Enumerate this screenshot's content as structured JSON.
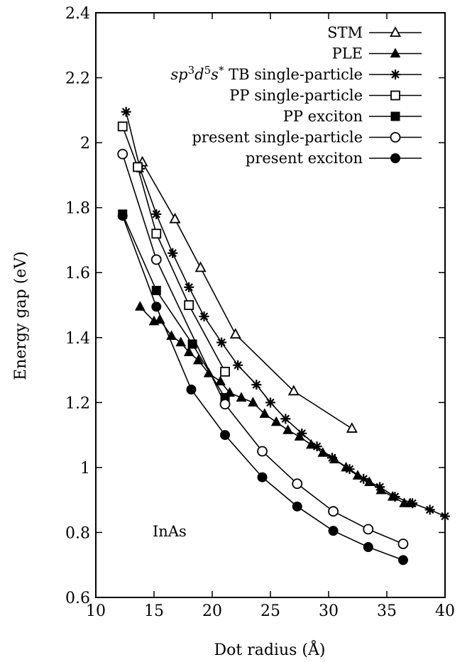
{
  "chart_data": {
    "type": "line",
    "xlabel": "Dot radius (Å)",
    "ylabel": "Energy gap (eV)",
    "xlim": [
      10,
      40
    ],
    "ylim": [
      0.6,
      2.4
    ],
    "xticks": [
      10,
      15,
      20,
      25,
      30,
      35,
      40
    ],
    "xtick_labels": [
      "10",
      "15",
      "20",
      "25",
      "30",
      "35",
      "40"
    ],
    "yticks": [
      0.6,
      0.8,
      1.0,
      1.2,
      1.4,
      1.6,
      1.8,
      2.0,
      2.2,
      2.4
    ],
    "ytick_labels": [
      "0.6",
      "0.8",
      "1",
      "1.2",
      "1.4",
      "1.6",
      "1.8",
      "2",
      "2.2",
      "2.4"
    ],
    "grid": false,
    "legend_position": "top-right",
    "annotation": "InAs",
    "series": [
      {
        "name": "STM",
        "marker": "open-triangle",
        "x": [
          14.0,
          16.8,
          19.0,
          22.0,
          27.0,
          32.0
        ],
        "y": [
          1.94,
          1.765,
          1.615,
          1.41,
          1.235,
          1.12
        ]
      },
      {
        "name": "PLE",
        "marker": "filled-triangle",
        "x": [
          13.8,
          15.0,
          15.5,
          16.5,
          17.3,
          18.0,
          18.8,
          19.7,
          20.7,
          21.5,
          22.5,
          23.5,
          24.5,
          25.5,
          26.5,
          27.5,
          28.5,
          29.5,
          30.5,
          31.5,
          32.5,
          33.5,
          34.5,
          35.5,
          36.5,
          37.0
        ],
        "y": [
          1.495,
          1.45,
          1.455,
          1.405,
          1.385,
          1.355,
          1.33,
          1.29,
          1.265,
          1.23,
          1.215,
          1.2,
          1.165,
          1.14,
          1.115,
          1.095,
          1.07,
          1.045,
          1.025,
          1.0,
          0.975,
          0.955,
          0.93,
          0.91,
          0.89,
          0.89
        ]
      },
      {
        "name": "sp^3 d^5 s^* TB single-particle",
        "label_text": {
          "sp": "sp",
          "sup1": "3",
          "d": "d",
          "sup2": "5",
          "s": "s",
          "sup3": "*",
          "rest": " TB single-particle"
        },
        "marker": "star",
        "x": [
          12.6,
          13.8,
          15.2,
          16.6,
          18.0,
          19.3,
          20.8,
          22.2,
          23.8,
          25.0,
          26.3,
          27.7,
          29.0,
          30.3,
          31.8,
          33.0,
          34.4,
          35.7,
          37.2,
          38.7,
          40.0
        ],
        "y": [
          2.095,
          1.92,
          1.78,
          1.66,
          1.555,
          1.465,
          1.385,
          1.315,
          1.255,
          1.2,
          1.15,
          1.105,
          1.065,
          1.03,
          0.995,
          0.965,
          0.94,
          0.91,
          0.89,
          0.87,
          0.85
        ]
      },
      {
        "name": "PP single-particle",
        "marker": "open-square",
        "x": [
          12.3,
          13.6,
          15.2,
          18.0,
          21.1
        ],
        "y": [
          2.05,
          1.925,
          1.72,
          1.5,
          1.295
        ]
      },
      {
        "name": "PP exciton",
        "marker": "filled-square",
        "x": [
          12.3,
          15.2,
          18.3,
          21.1
        ],
        "y": [
          1.78,
          1.545,
          1.38,
          1.215
        ]
      },
      {
        "name": "present single-particle",
        "marker": "open-circle",
        "x": [
          12.3,
          15.2,
          21.1,
          24.3,
          27.3,
          30.4,
          33.4,
          36.4
        ],
        "y": [
          1.965,
          1.64,
          1.195,
          1.05,
          0.95,
          0.865,
          0.81,
          0.765
        ]
      },
      {
        "name": "present exciton",
        "marker": "filled-circle",
        "x": [
          12.3,
          15.2,
          18.2,
          21.1,
          24.3,
          27.3,
          30.4,
          33.4,
          36.4
        ],
        "y": [
          1.775,
          1.495,
          1.24,
          1.1,
          0.97,
          0.88,
          0.805,
          0.755,
          0.715
        ]
      }
    ]
  }
}
